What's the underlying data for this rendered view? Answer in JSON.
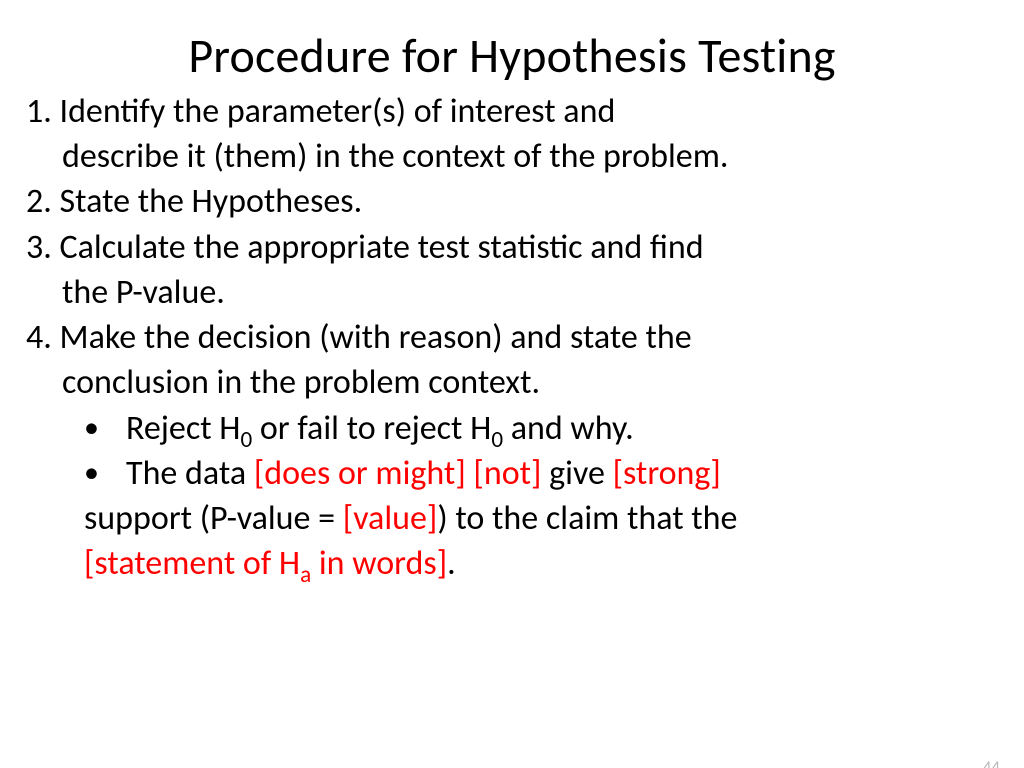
{
  "title": "Procedure for Hypothesis Testing",
  "colors": {
    "text": "#000000",
    "accent": "#ff0000",
    "background": "#ffffff",
    "pagenum": "#b9b9b9"
  },
  "typography": {
    "title_fontsize": 48,
    "body_fontsize": 34,
    "font_family": "Calibri"
  },
  "steps": {
    "s1_l1": "1. Identify the parameter(s) of interest and",
    "s1_l2": "describe it (them) in the context of the problem.",
    "s2_l1": "2. State the Hypotheses.",
    "s3_l1": "3. Calculate the appropriate test statistic and find",
    "s3_l2": "the P-value.",
    "s4_l1": "4. Make the decision (with reason) and state the",
    "s4_l2": "conclusion in the problem context."
  },
  "bullets": {
    "b1_pre": "Reject H",
    "b1_sub1": "0",
    "b1_mid": " or fail to reject H",
    "b1_sub2": "0",
    "b1_post": " and why.",
    "b2_t1": "The data ",
    "b2_r1": "[does or might] [not]",
    "b2_t2": " give ",
    "b2_r2": "[strong]",
    "b2_t3": "support (P-value = ",
    "b2_r3": "[value]",
    "b2_t4": ") to the claim that the",
    "b2_r4_pre": "[statement of H",
    "b2_r4_sub": "a",
    "b2_r4_post": " in words]",
    "b2_t5": "."
  },
  "page_number": "44"
}
